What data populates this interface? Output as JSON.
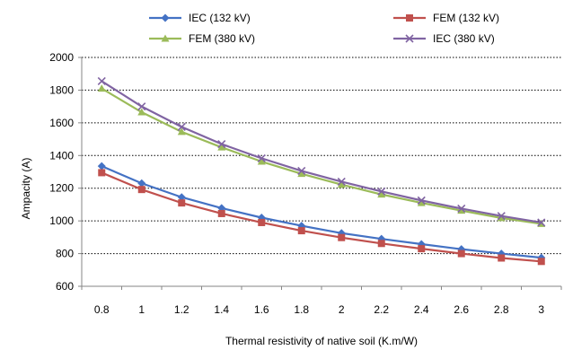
{
  "chart_data": {
    "type": "line",
    "xlabel": "Thermal resistivity of native soil (K.m/W)",
    "ylabel": "Ampacity (A)",
    "ylim": [
      600,
      2000
    ],
    "y_ticks": [
      600,
      800,
      1000,
      1200,
      1400,
      1600,
      1800,
      2000
    ],
    "grid": "horizontal dotted",
    "legend_position": "top",
    "categories": [
      "0.8",
      "1",
      "1.2",
      "1.4",
      "1.6",
      "1.8",
      "2",
      "2.2",
      "2.4",
      "2.6",
      "2.8",
      "3"
    ],
    "series": [
      {
        "name": "IEC (132 kV)",
        "color": "#4472C4",
        "marker": "diamond",
        "values": [
          1335,
          1230,
          1145,
          1078,
          1020,
          970,
          925,
          890,
          858,
          827,
          800,
          775
        ]
      },
      {
        "name": "FEM (132 kV)",
        "color": "#C0504D",
        "marker": "square",
        "values": [
          1295,
          1192,
          1110,
          1045,
          990,
          940,
          898,
          862,
          830,
          800,
          773,
          752
        ]
      },
      {
        "name": "FEM (380 kV)",
        "color": "#9BBB59",
        "marker": "triangle",
        "values": [
          1810,
          1665,
          1545,
          1450,
          1363,
          1288,
          1222,
          1162,
          1110,
          1063,
          1018,
          982
        ]
      },
      {
        "name": "IEC (380 kV)",
        "color": "#8064A2",
        "marker": "x",
        "values": [
          1855,
          1700,
          1575,
          1470,
          1383,
          1306,
          1240,
          1180,
          1125,
          1075,
          1030,
          990
        ]
      }
    ]
  }
}
